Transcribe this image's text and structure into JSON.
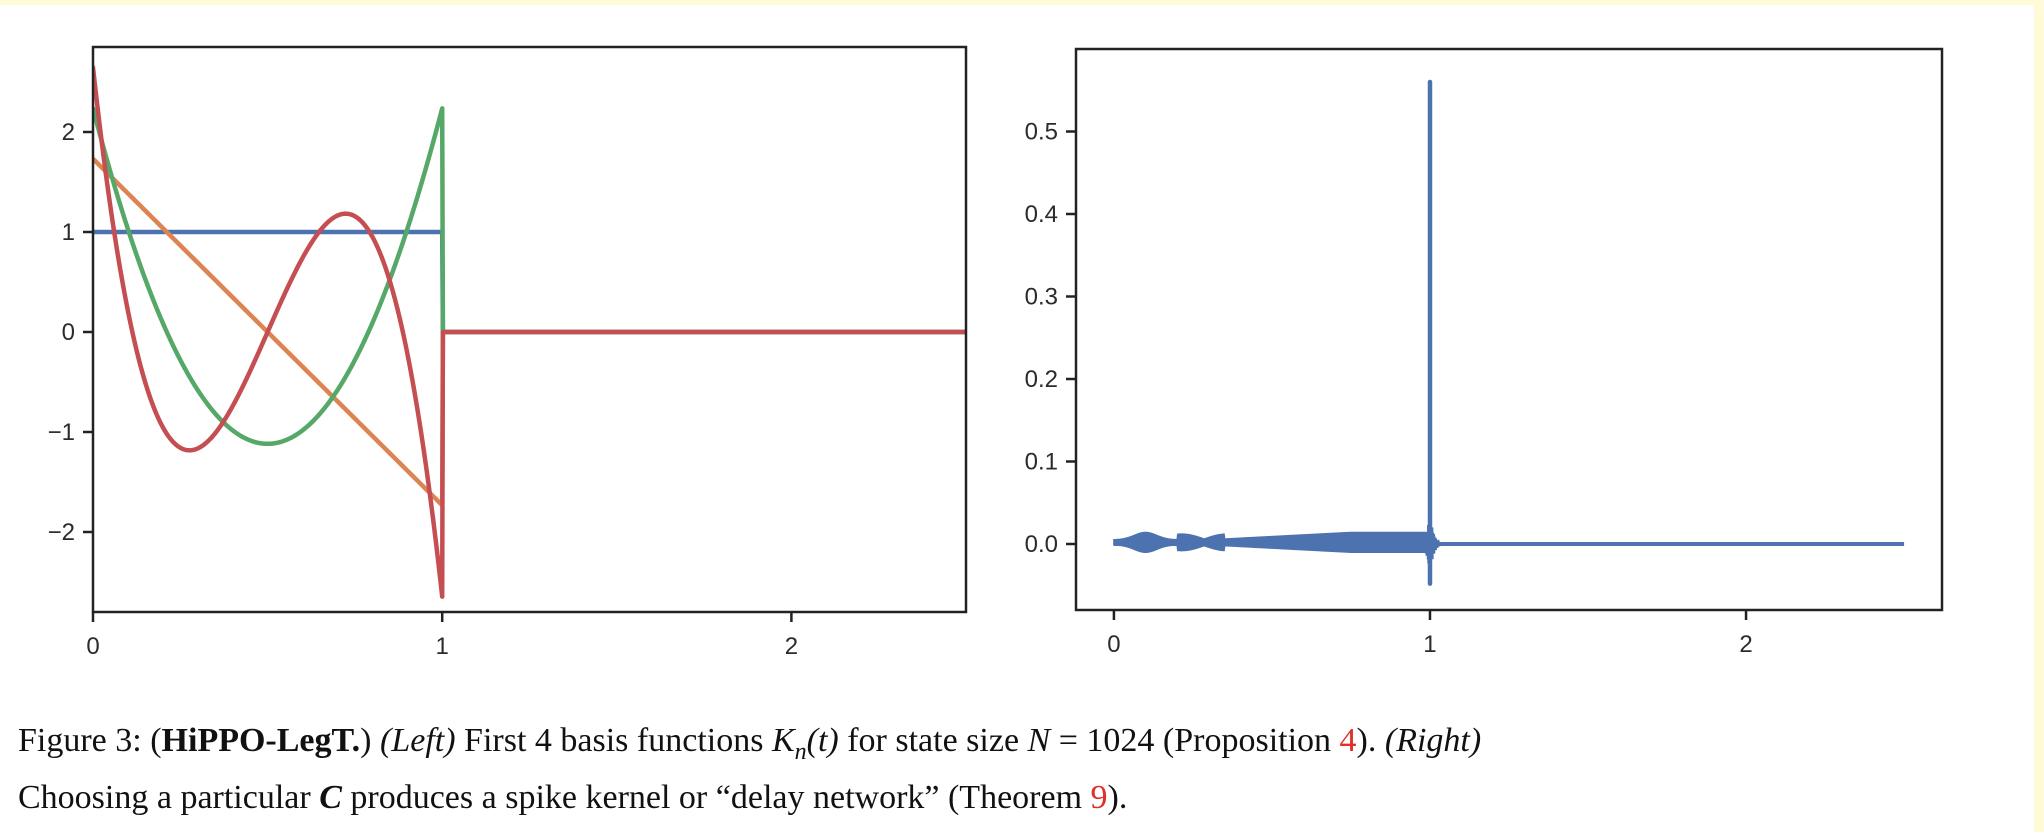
{
  "colors": {
    "blue": "#4c72b0",
    "orange": "#dd8452",
    "green": "#55a868",
    "red": "#c44e52",
    "frame": "#222222",
    "reference": "#e0302a"
  },
  "chart_data": [
    {
      "type": "line",
      "xlim": [
        0,
        2.5
      ],
      "ylim": [
        -2.8,
        2.85
      ],
      "xticks": [
        0,
        1,
        2
      ],
      "yticks": [
        -2,
        -1,
        0,
        1,
        2
      ],
      "xtick_labels": [
        "0",
        "1",
        "2"
      ],
      "ytick_labels": [
        "−2",
        "−1",
        "0",
        "1",
        "2"
      ],
      "series": [
        {
          "color": "blue",
          "description": "K_0(t) = 1 on [0,1], 0 after",
          "x": [
            0,
            1,
            1.001,
            2.5
          ],
          "y": [
            1,
            1,
            0,
            0
          ]
        },
        {
          "color": "orange",
          "description": "K_1(t) linear from 1.73 to -1.73 on [0,1], 0 after",
          "x": [
            0,
            1,
            1.001,
            2.5
          ],
          "y": [
            1.73,
            -1.73,
            0,
            0
          ]
        },
        {
          "color": "green",
          "description": "K_2(t) quadratic on [0,1], 0 after",
          "x": [
            0,
            0.1,
            0.2,
            0.3,
            0.4,
            0.5,
            0.6,
            0.7,
            0.8,
            0.9,
            1.0,
            1.001,
            2.5
          ],
          "y": [
            2.24,
            1.16,
            0.27,
            -0.43,
            -0.94,
            -1.12,
            -0.94,
            -0.43,
            0.27,
            1.16,
            2.24,
            0,
            0
          ]
        },
        {
          "color": "red",
          "description": "K_3(t) cubic on [0,1], 0 after",
          "x": [
            0,
            0.05,
            0.1,
            0.15,
            0.2,
            0.28,
            0.35,
            0.45,
            0.5,
            0.55,
            0.65,
            0.72,
            0.8,
            0.85,
            0.9,
            0.95,
            1.0,
            1.001,
            2.5
          ],
          "y": [
            2.65,
            1.2,
            0.11,
            -0.67,
            -1.12,
            -1.19,
            -0.92,
            -0.24,
            0,
            0.24,
            0.86,
            1.19,
            1.12,
            0.67,
            -0.11,
            -1.2,
            -2.5,
            0,
            0
          ]
        }
      ]
    },
    {
      "type": "line",
      "xlim": [
        -0.12,
        2.62
      ],
      "ylim": [
        -0.08,
        0.6
      ],
      "xticks": [
        0,
        1,
        2
      ],
      "yticks": [
        0.0,
        0.1,
        0.2,
        0.3,
        0.4,
        0.5
      ],
      "xtick_labels": [
        "0",
        "1",
        "2"
      ],
      "ytick_labels": [
        "0.0",
        "0.1",
        "0.2",
        "0.3",
        "0.4",
        "0.5"
      ],
      "series": [
        {
          "color": "blue",
          "description": "spike kernel: small oscillation on [0,1], spike to ~0.56 at t=1, 0 after",
          "spike_x": 1.0,
          "spike_peak": 0.56,
          "spike_min": -0.048,
          "x": [
            0,
            0.1,
            0.2,
            0.5,
            0.8,
            0.95,
            1.0,
            1.05,
            2.5
          ],
          "y": [
            0,
            0.006,
            0.003,
            0.008,
            0.008,
            0.01,
            0.56,
            0,
            0
          ]
        }
      ]
    }
  ],
  "caption": {
    "figure_label": "Figure 3:",
    "open_paren": "(",
    "bold_title": "HiPPO-LegT.",
    "close_paren": ")",
    "left_label": "(Left)",
    "line1_text": "First 4 basis functions",
    "kernel_symbol": "K",
    "kernel_sub": "n",
    "kernel_arg": "(t)",
    "line1_text2": "for state size",
    "state_symbol": "N",
    "state_eq": " = 1024 (Proposition ",
    "prop_ref": "4",
    "line1_end": ").",
    "right_label": "(Right)",
    "line2_start": "Choosing a particular",
    "c_symbol": "C",
    "line2_text": "produces a spike kernel or “delay network” (Theorem ",
    "thm_ref": "9",
    "line2_end": ")."
  }
}
